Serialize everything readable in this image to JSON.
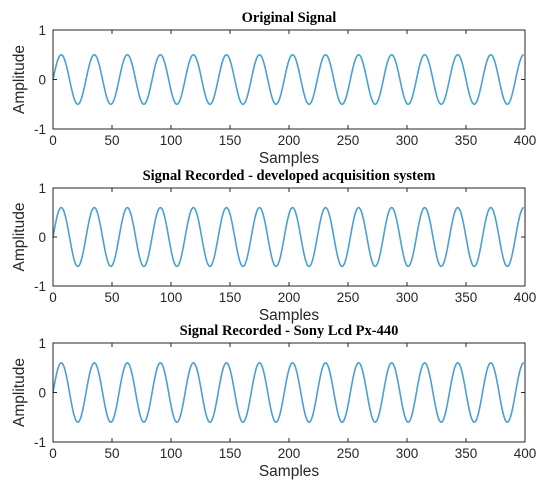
{
  "chart_data": [
    {
      "type": "line",
      "title": "Original Signal",
      "xlabel": "Samples",
      "ylabel": "Amplitude",
      "xlim": [
        0,
        400
      ],
      "ylim": [
        -1,
        1
      ],
      "xticks": [
        0,
        50,
        100,
        150,
        200,
        250,
        300,
        350,
        400
      ],
      "yticks": [
        -1,
        0,
        1
      ],
      "grid": false,
      "color": "#4a9fd4",
      "series": [
        {
          "x": [
            0,
            7,
            14,
            21,
            28,
            35,
            42,
            49,
            56,
            63,
            70,
            77,
            84,
            91,
            98,
            105,
            112,
            119,
            126,
            133,
            140,
            147,
            154,
            161,
            168,
            175,
            182,
            189,
            196,
            203,
            210,
            217,
            224,
            231,
            238,
            245,
            252,
            259,
            266,
            273,
            280,
            287,
            294,
            301,
            308,
            315,
            322,
            329,
            336,
            343,
            350,
            357,
            364,
            371,
            378,
            385,
            392,
            399
          ],
          "y": [
            0.0,
            0.5,
            0.0,
            -0.5,
            0.0,
            0.5,
            0.0,
            -0.5,
            0.0,
            0.5,
            0.0,
            -0.5,
            0.0,
            0.5,
            0.0,
            -0.5,
            0.0,
            0.5,
            0.0,
            -0.5,
            0.0,
            0.5,
            0.0,
            -0.5,
            0.0,
            0.5,
            0.0,
            -0.5,
            0.0,
            0.5,
            0.0,
            -0.5,
            0.0,
            0.5,
            0.0,
            -0.5,
            0.0,
            0.5,
            0.0,
            -0.5,
            0.0,
            0.5,
            0.0,
            -0.5,
            0.0,
            0.5,
            0.0,
            -0.5,
            0.0,
            0.5,
            0.0,
            -0.5,
            0.0,
            0.5,
            0.0,
            -0.5,
            0.0,
            0.5
          ]
        }
      ]
    },
    {
      "type": "line",
      "title": "Signal Recorded - developed acquisition system",
      "xlabel": "Samples",
      "ylabel": "Amplitude",
      "xlim": [
        0,
        400
      ],
      "ylim": [
        -1,
        1
      ],
      "xticks": [
        0,
        50,
        100,
        150,
        200,
        250,
        300,
        350,
        400
      ],
      "yticks": [
        -1,
        0,
        1
      ],
      "grid": false,
      "color": "#4a9fd4",
      "series": [
        {
          "x": [
            0,
            7,
            14,
            21,
            28,
            35,
            42,
            49,
            56,
            63,
            70,
            77,
            84,
            91,
            98,
            105,
            112,
            119,
            126,
            133,
            140,
            147,
            154,
            161,
            168,
            175,
            182,
            189,
            196,
            203,
            210,
            217,
            224,
            231,
            238,
            245,
            252,
            259,
            266,
            273,
            280,
            287,
            294,
            301,
            308,
            315,
            322,
            329,
            336,
            343,
            350,
            357,
            364,
            371,
            378,
            385,
            392,
            399
          ],
          "y": [
            0.0,
            0.6,
            0.0,
            -0.6,
            0.0,
            0.6,
            0.0,
            -0.6,
            0.0,
            0.6,
            0.0,
            -0.6,
            0.0,
            0.6,
            0.0,
            -0.6,
            0.0,
            0.6,
            0.0,
            -0.6,
            0.0,
            0.6,
            0.0,
            -0.6,
            0.0,
            0.6,
            0.0,
            -0.6,
            0.0,
            0.6,
            0.0,
            -0.6,
            0.0,
            0.6,
            0.0,
            -0.6,
            0.0,
            0.6,
            0.0,
            -0.6,
            0.0,
            0.6,
            0.0,
            -0.6,
            0.0,
            0.6,
            0.0,
            -0.6,
            0.0,
            0.6,
            0.0,
            -0.6,
            0.0,
            0.6,
            0.0,
            -0.6,
            0.0,
            0.6
          ]
        }
      ]
    },
    {
      "type": "line",
      "title": "Signal Recorded - Sony Lcd Px-440",
      "xlabel": "Samples",
      "ylabel": "Amplitude",
      "xlim": [
        0,
        400
      ],
      "ylim": [
        -1,
        1
      ],
      "xticks": [
        0,
        50,
        100,
        150,
        200,
        250,
        300,
        350,
        400
      ],
      "yticks": [
        -1,
        0,
        1
      ],
      "grid": false,
      "color": "#4a9fd4",
      "series": [
        {
          "x": [
            0,
            7,
            14,
            21,
            28,
            35,
            42,
            49,
            56,
            63,
            70,
            77,
            84,
            91,
            98,
            105,
            112,
            119,
            126,
            133,
            140,
            147,
            154,
            161,
            168,
            175,
            182,
            189,
            196,
            203,
            210,
            217,
            224,
            231,
            238,
            245,
            252,
            259,
            266,
            273,
            280,
            287,
            294,
            301,
            308,
            315,
            322,
            329,
            336,
            343,
            350,
            357,
            364,
            371,
            378,
            385,
            392,
            399
          ],
          "y": [
            0.0,
            0.6,
            0.0,
            -0.6,
            0.0,
            0.6,
            0.0,
            -0.6,
            0.0,
            0.6,
            0.0,
            -0.6,
            0.0,
            0.6,
            0.0,
            -0.6,
            0.0,
            0.6,
            0.0,
            -0.6,
            0.0,
            0.6,
            0.0,
            -0.6,
            0.0,
            0.6,
            0.0,
            -0.6,
            0.0,
            0.6,
            0.0,
            -0.6,
            0.0,
            0.6,
            0.0,
            -0.6,
            0.0,
            0.6,
            0.0,
            -0.6,
            0.0,
            0.6,
            0.0,
            -0.6,
            0.0,
            0.6,
            0.0,
            -0.6,
            0.0,
            0.6,
            0.0,
            -0.6,
            0.0,
            0.6,
            0.0,
            -0.6,
            0.0,
            0.6
          ]
        }
      ]
    }
  ]
}
